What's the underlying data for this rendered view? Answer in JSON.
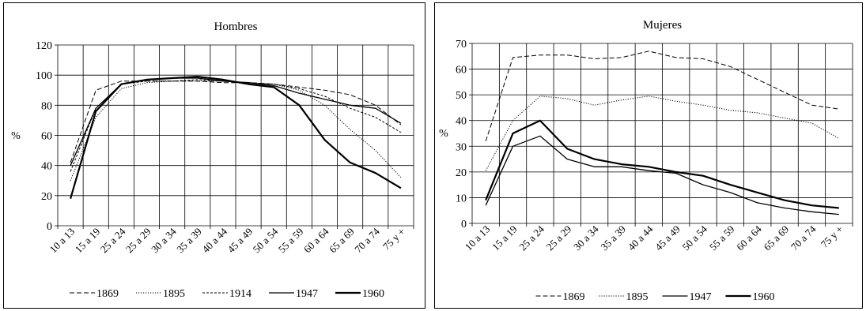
{
  "chart_data": [
    {
      "type": "line",
      "title": "Hombres",
      "xlabel": "",
      "ylabel": "%",
      "ylim": [
        0,
        120
      ],
      "yticks": [
        0,
        20,
        40,
        60,
        80,
        100,
        120
      ],
      "grid": true,
      "legend": "bottom",
      "categories": [
        "10 a 13",
        "15 a 19",
        "25 a 24",
        "25 a 29",
        "30 a 34",
        "35 a 39",
        "40 a 44",
        "45 a 49",
        "50 a 54",
        "55 a 59",
        "60 a 64",
        "65 a 69",
        "70 a 74",
        "75 y +"
      ],
      "series": [
        {
          "name": "1869",
          "style": "dashed",
          "values": [
            42,
            90,
            96,
            96,
            96,
            96,
            95,
            95,
            94,
            92,
            90,
            87,
            80,
            67
          ]
        },
        {
          "name": "1895",
          "style": "dotted",
          "values": [
            30,
            72,
            91,
            95,
            96,
            96,
            96,
            95,
            94,
            90,
            80,
            64,
            50,
            32
          ]
        },
        {
          "name": "1914",
          "style": "short-dashed",
          "values": [
            36,
            78,
            94,
            96,
            96,
            97,
            96,
            95,
            94,
            91,
            86,
            78,
            72,
            62
          ]
        },
        {
          "name": "1947",
          "style": "solid-thin",
          "values": [
            40,
            78,
            94,
            97,
            98,
            98,
            96,
            95,
            93,
            88,
            84,
            80,
            78,
            68
          ]
        },
        {
          "name": "1960",
          "style": "solid-thick",
          "values": [
            18,
            76,
            94,
            97,
            98,
            99,
            97,
            94,
            92,
            80,
            57,
            42,
            35,
            25
          ]
        }
      ]
    },
    {
      "type": "line",
      "title": "Mujeres",
      "xlabel": "",
      "ylabel": "%",
      "ylim": [
        0,
        70
      ],
      "yticks": [
        0,
        10,
        20,
        30,
        40,
        50,
        60,
        70
      ],
      "grid": true,
      "legend": "bottom",
      "categories": [
        "10 a 13",
        "15 a 19",
        "25 a 24",
        "25 a 29",
        "30 a 34",
        "35 a 39",
        "40 a 44",
        "45 a 49",
        "50 a 54",
        "55 a 59",
        "60 a 64",
        "65 a 69",
        "70 a 74",
        "75 y +"
      ],
      "series": [
        {
          "name": "1869",
          "style": "dashed",
          "values": [
            32,
            64.5,
            65.5,
            65.5,
            64,
            64.5,
            67,
            64.5,
            64,
            61,
            56,
            51,
            46,
            44.5
          ]
        },
        {
          "name": "1895",
          "style": "dotted",
          "values": [
            20.5,
            40,
            49.5,
            48.5,
            46,
            48,
            49.5,
            47.5,
            46,
            44,
            43,
            41,
            39,
            33
          ]
        },
        {
          "name": "1947",
          "style": "solid-thin",
          "values": [
            7,
            30,
            34,
            25,
            22,
            22,
            20.5,
            19.5,
            15,
            12,
            8,
            6,
            4.5,
            3.5
          ]
        },
        {
          "name": "1960",
          "style": "solid-thick",
          "values": [
            9,
            35,
            40,
            29,
            25,
            23,
            22,
            20,
            18.5,
            15,
            12,
            9,
            7,
            6
          ]
        }
      ]
    }
  ]
}
